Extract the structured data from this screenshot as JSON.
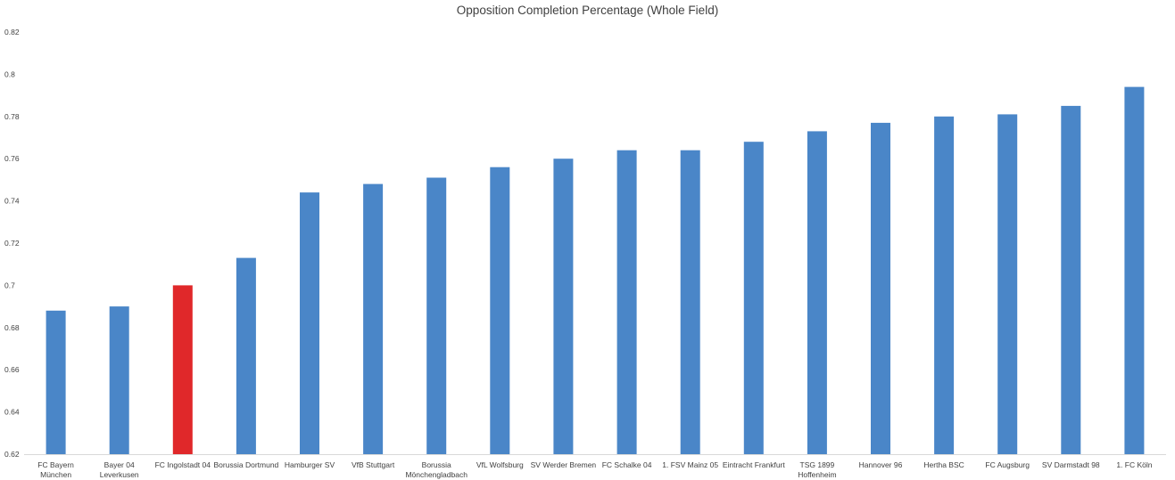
{
  "chart_data": {
    "type": "bar",
    "title": "Opposition Completion Percentage (Whole Field)",
    "xlabel": "",
    "ylabel": "",
    "ylim": [
      0.62,
      0.82
    ],
    "yticks": [
      "0.62",
      "0.64",
      "0.66",
      "0.68",
      "0.7",
      "0.72",
      "0.74",
      "0.76",
      "0.78",
      "0.8",
      "0.82"
    ],
    "grid": false,
    "legend": "none",
    "default_color": "#4a86c8",
    "highlight_color": "#e0282a",
    "categories": [
      "FC Bayern München",
      "Bayer 04 Leverkusen",
      "FC Ingolstadt 04",
      "Borussia Dortmund",
      "Hamburger SV",
      "VfB Stuttgart",
      "Borussia Mönchengladbach",
      "VfL Wolfsburg",
      "SV Werder Bremen",
      "FC Schalke 04",
      "1. FSV Mainz 05",
      "Eintracht Frankfurt",
      "TSG 1899 Hoffenheim",
      "Hannover 96",
      "Hertha BSC",
      "FC Augsburg",
      "SV Darmstadt 98",
      "1. FC Köln"
    ],
    "category_lines": [
      [
        "FC Bayern",
        "München"
      ],
      [
        "Bayer 04",
        "Leverkusen"
      ],
      [
        "FC Ingolstadt 04"
      ],
      [
        "Borussia Dortmund"
      ],
      [
        "Hamburger SV"
      ],
      [
        "VfB Stuttgart"
      ],
      [
        "Borussia",
        "Mönchengladbach"
      ],
      [
        "VfL Wolfsburg"
      ],
      [
        "SV Werder Bremen"
      ],
      [
        "FC Schalke 04"
      ],
      [
        "1. FSV Mainz 05"
      ],
      [
        "Eintracht Frankfurt"
      ],
      [
        "TSG 1899",
        "Hoffenheim"
      ],
      [
        "Hannover 96"
      ],
      [
        "Hertha BSC"
      ],
      [
        "FC Augsburg"
      ],
      [
        "SV Darmstadt 98"
      ],
      [
        "1. FC Köln"
      ]
    ],
    "values": [
      0.688,
      0.69,
      0.7,
      0.713,
      0.744,
      0.748,
      0.751,
      0.756,
      0.76,
      0.764,
      0.764,
      0.768,
      0.773,
      0.777,
      0.78,
      0.781,
      0.785,
      0.794
    ],
    "highlight_index": 2
  }
}
